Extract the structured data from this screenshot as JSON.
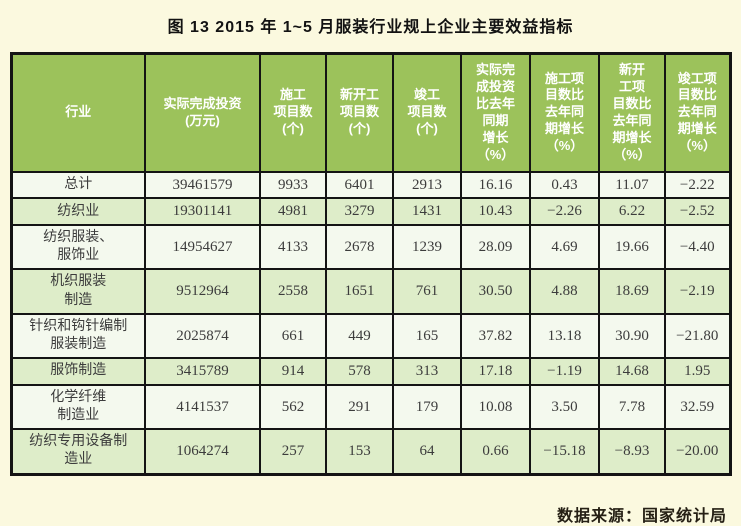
{
  "title": "图 13  2015 年 1~5 月服装行业规上企业主要效益指标",
  "colors": {
    "page_bg": "#FBF9DF",
    "header_green": "#9CC25B",
    "row_light": "#F4F9EE",
    "row_green": "#DEEDC9",
    "border_color": "#141414",
    "text_dark": "#3C3C3C"
  },
  "table": {
    "columns": [
      {
        "label": "行业"
      },
      {
        "label": "实际完成投资\n(万元)"
      },
      {
        "label": "施工\n项目数\n(个)"
      },
      {
        "label": "新开工\n项目数\n(个)"
      },
      {
        "label": "竣工\n项目数\n(个)"
      },
      {
        "label": "实际完\n成投资\n比去年\n同期\n增长\n（%）"
      },
      {
        "label": "施工项\n目数比\n去年同\n期增长\n（%）"
      },
      {
        "label": "新开\n工项\n目数比\n去年同\n期增长\n（%）"
      },
      {
        "label": "竣工项\n目数比\n去年同\n期增长\n（%）"
      }
    ],
    "rows": [
      {
        "industry": "总计",
        "values": [
          "39461579",
          "9933",
          "6401",
          "2913",
          "16.16",
          "0.43",
          "11.07",
          "−2.22"
        ]
      },
      {
        "industry": "纺织业",
        "values": [
          "19301141",
          "4981",
          "3279",
          "1431",
          "10.43",
          "−2.26",
          "6.22",
          "−2.52"
        ]
      },
      {
        "industry": "纺织服装、\n服饰业",
        "values": [
          "14954627",
          "4133",
          "2678",
          "1239",
          "28.09",
          "4.69",
          "19.66",
          "−4.40"
        ]
      },
      {
        "industry": "机织服装\n制造",
        "values": [
          "9512964",
          "2558",
          "1651",
          "761",
          "30.50",
          "4.88",
          "18.69",
          "−2.19"
        ]
      },
      {
        "industry": "针织和钩针编制\n服装制造",
        "values": [
          "2025874",
          "661",
          "449",
          "165",
          "37.82",
          "13.18",
          "30.90",
          "−21.80"
        ]
      },
      {
        "industry": "服饰制造",
        "values": [
          "3415789",
          "914",
          "578",
          "313",
          "17.18",
          "−1.19",
          "14.68",
          "1.95"
        ]
      },
      {
        "industry": "化学纤维\n制造业",
        "values": [
          "4141537",
          "562",
          "291",
          "179",
          "10.08",
          "3.50",
          "7.78",
          "32.59"
        ]
      },
      {
        "industry": "纺织专用设备制\n造业",
        "values": [
          "1064274",
          "257",
          "153",
          "64",
          "0.66",
          "−15.18",
          "−8.93",
          "−20.00"
        ]
      }
    ]
  },
  "footer": {
    "source": "数据来源：国家统计局"
  }
}
